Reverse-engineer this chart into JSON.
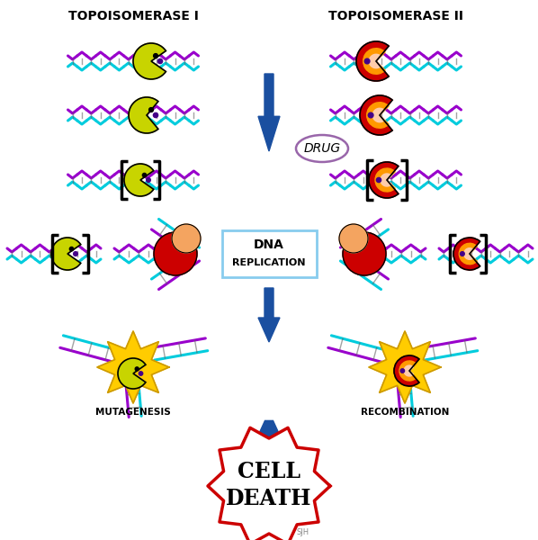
{
  "bg_color": "#ffffff",
  "topo1_label": "TOPOISOMERASE I",
  "topo2_label": "TOPOISOMERASE II",
  "drug_label": "DRUG",
  "mutagenesis_label": "MUTAGENESIS",
  "recombination_label": "RECOMBINATION",
  "cell_death_line1": "CELL",
  "cell_death_line2": "DEATH",
  "dna_rep_line1": "DNA",
  "dna_rep_line2": "REPLICATION",
  "arrow_color": "#1a4fa0",
  "dna_purple": "#9900cc",
  "dna_cyan": "#00ccdd",
  "topo1_color": "#c8d400",
  "topo1_outline": "#888800",
  "topo2_outer": "#cc0000",
  "topo2_inner": "#ff6666",
  "topo2_glow": "#ff9900",
  "replication_box_edge": "#88ccee",
  "drug_oval_edge": "#9966aa",
  "explosion_color": "#ffcc00",
  "cell_death_border": "#cc0000",
  "large_circle_color": "#cc0000",
  "medium_circle_color": "#f4a460",
  "small_dot_color": "#440088",
  "bracket_color": "#000000",
  "sig_color": "#888888"
}
